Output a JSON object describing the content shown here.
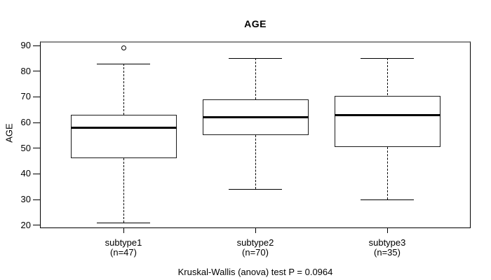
{
  "chart_data": {
    "type": "boxplot",
    "title": "AGE",
    "ylabel": "AGE",
    "xlabel": "",
    "yticks": [
      90,
      80,
      70,
      60,
      50,
      40,
      30,
      20
    ],
    "ylim": [
      18,
      91
    ],
    "grid": false,
    "legend": false,
    "categories": [
      "subtype1",
      "subtype2",
      "subtype3"
    ],
    "category_sublabels": [
      "(n=47)",
      "(n=70)",
      "(n=35)"
    ],
    "series": [
      {
        "name": "subtype1",
        "n": 47,
        "whisker_low": 21,
        "q1": 46,
        "median": 58,
        "q3": 63,
        "whisker_high": 83,
        "outliers": [
          89
        ]
      },
      {
        "name": "subtype2",
        "n": 70,
        "whisker_low": 34,
        "q1": 55,
        "median": 62,
        "q3": 69,
        "whisker_high": 85,
        "outliers": []
      },
      {
        "name": "subtype3",
        "n": 35,
        "whisker_low": 30,
        "q1": 50.5,
        "median": 63,
        "q3": 70.5,
        "whisker_high": 85,
        "outliers": []
      }
    ],
    "annotation": "Kruskal-Wallis (anova) test P = 0.0964",
    "colors": {
      "background": "#ffffff",
      "box_stroke": "#000000",
      "median": "#000000",
      "text": "#000000",
      "plot_border": "#000000",
      "plot_border_top": "#8c8c8c"
    }
  }
}
